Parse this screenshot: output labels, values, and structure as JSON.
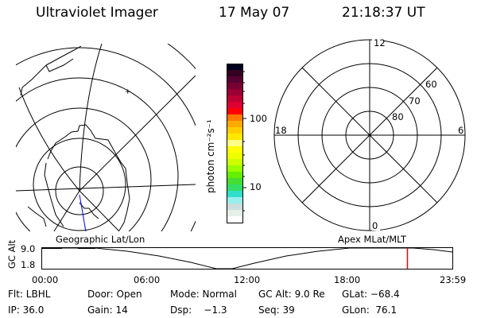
{
  "header": {
    "instrument": "Ultraviolet Imager",
    "date": "17 May 07",
    "time": "21:18:37 UT"
  },
  "colorbar": {
    "unit_label": "photon cm⁻²s⁻¹",
    "ticks": [
      "100",
      "10"
    ],
    "colors": [
      "#000022",
      "#330022",
      "#550033",
      "#770033",
      "#990033",
      "#bb0033",
      "#dd0033",
      "#ff0000",
      "#ff7700",
      "#ffaa00",
      "#ffcc00",
      "#ffe800",
      "#ffff88",
      "#ffff00",
      "#eeff00",
      "#ccff00",
      "#99ff00",
      "#66ee00",
      "#44dd33",
      "#33dd66",
      "#33ddcc",
      "#99eeee",
      "#ccdddd",
      "#e4f0e8",
      "#ffffff"
    ]
  },
  "polar_plot": {
    "mlt_labels": {
      "top": "12",
      "left": "18",
      "right": "6",
      "bottom": "0"
    },
    "lat_labels": [
      "60",
      "70",
      "80"
    ]
  },
  "timeline": {
    "left_label": "Geographic Lat/Lon",
    "right_label": "Apex MLat/MLT",
    "y_axis_label": "GC Alt",
    "y_ticks": [
      "9.0",
      "1.8"
    ],
    "x_ticks": [
      "00:00",
      "06:00",
      "12:00",
      "18:00",
      "23:59"
    ],
    "current_time_marker": "21:18",
    "marker_color": "#ff0000"
  },
  "status": {
    "row1": [
      "Flt: LBHL",
      "Door: Open",
      "Mode: Normal",
      "GC Alt: 9.0 Re",
      "GLat: −68.4"
    ],
    "row2": [
      "IP: 36.0",
      "Gain: 14",
      "Dsp:    −1.3",
      "Seq: 39",
      "GLon:  76.1"
    ]
  }
}
